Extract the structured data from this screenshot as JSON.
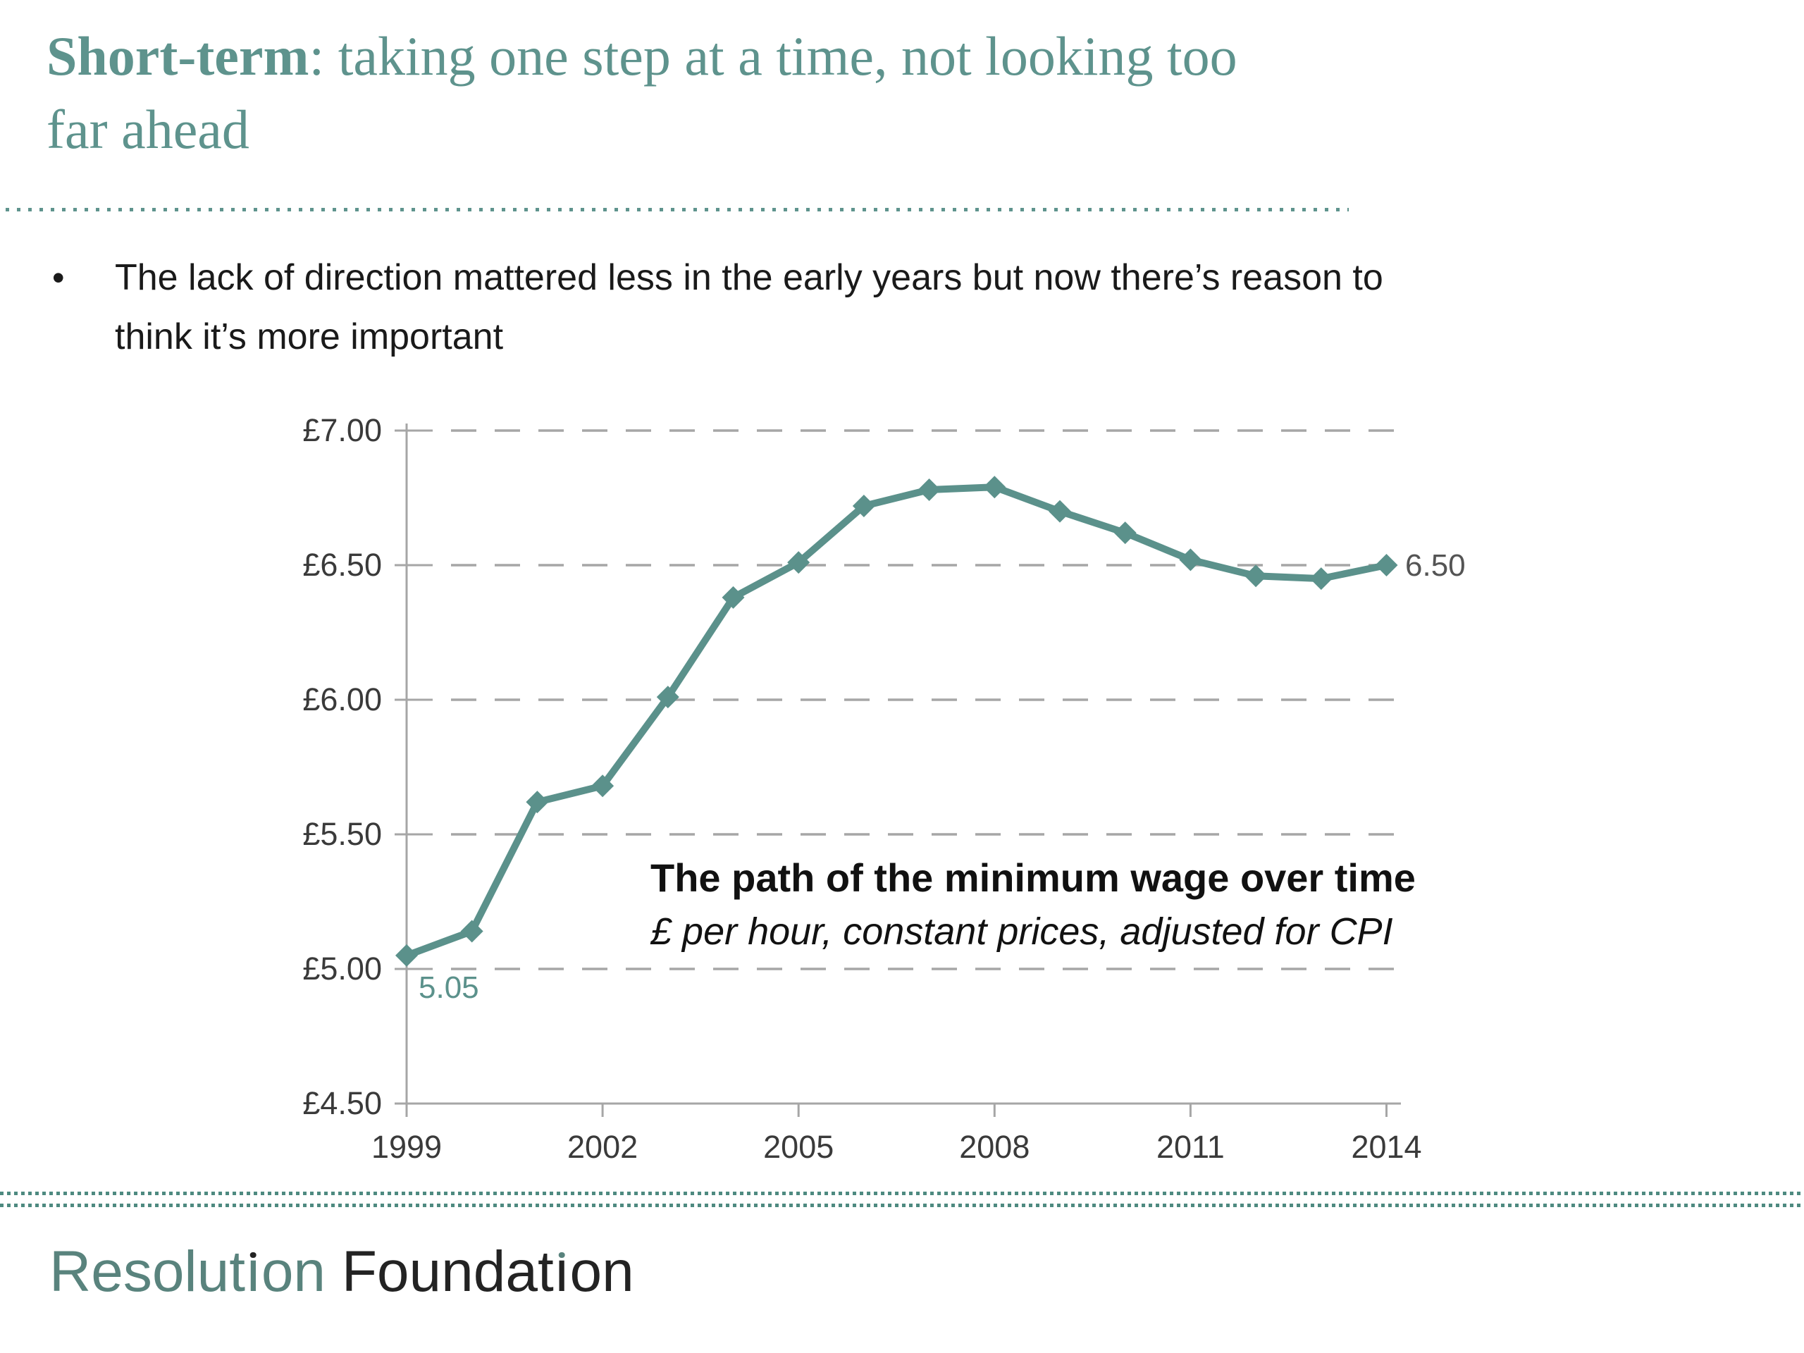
{
  "title": {
    "bold": "Short-term",
    "rest_line1": ": taking one step at a time, not looking too",
    "line2": "far ahead"
  },
  "bullet": {
    "marker": "•",
    "lines": [
      "The lack of direction mattered less in the early years but now there’s reason to",
      "think it’s more important"
    ]
  },
  "chart_data": {
    "type": "line",
    "title": "The path of the minimum wage over time",
    "subtitle": "£ per hour, constant prices, adjusted for CPI",
    "x": [
      1999,
      2000,
      2001,
      2002,
      2003,
      2004,
      2005,
      2006,
      2007,
      2008,
      2009,
      2010,
      2011,
      2012,
      2013,
      2014
    ],
    "values": [
      5.05,
      5.14,
      5.62,
      5.68,
      6.01,
      6.38,
      6.51,
      6.72,
      6.78,
      6.79,
      6.7,
      6.62,
      6.52,
      6.46,
      6.45,
      6.5
    ],
    "x_tick_years": [
      1999,
      2002,
      2005,
      2008,
      2011,
      2014
    ],
    "x_tick_labels": [
      "1999",
      "2002",
      "2005",
      "2008",
      "2011",
      "2014"
    ],
    "y_ticks": [
      4.5,
      5.0,
      5.5,
      6.0,
      6.5,
      7.0
    ],
    "y_tick_labels": [
      "£4.50",
      "£5.00",
      "£5.50",
      "£6.00",
      "£6.50",
      "£7.00"
    ],
    "ylim": [
      4.5,
      7.0
    ],
    "xlabel": "",
    "ylabel": "",
    "grid": "horizontal-dashed",
    "legend_position": "none",
    "first_point_label": "5.05",
    "last_point_label": "6.50",
    "line_color": "#5B918B",
    "grid_color": "#A6A6A6",
    "tick_label_color": "#3A3A3A",
    "end_label_color": "#545454"
  },
  "footer": {
    "resolution_parts": [
      "Resolut",
      "ı",
      "on"
    ],
    "foundation_parts": [
      "Foundat",
      "ı",
      "on"
    ]
  },
  "colors": {
    "accent_teal": "#5E938D",
    "line_teal": "#5B918B",
    "axis_gray": "#A6A6A6",
    "text_dark": "#1A1A1A",
    "tick_label": "#3A3A3A",
    "end_label_gray": "#545454",
    "logo_teal": "#59837D",
    "logo_dark": "#232323",
    "footer_dots": "#4E8A80"
  }
}
